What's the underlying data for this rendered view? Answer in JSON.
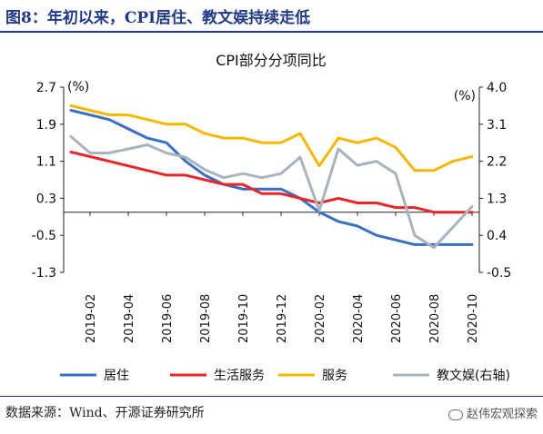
{
  "figure_title": "图8：年初以来，CPI居住、教文娱持续走低",
  "source": "数据来源：Wind、开源证券研究所",
  "watermark": "赵伟宏观探索",
  "chart_data": {
    "type": "line",
    "title": "CPI部分分项同比",
    "left_axis": {
      "unit": "(%)",
      "ticks": [
        2.7,
        1.9,
        1.1,
        0.3,
        -0.5,
        -1.3
      ],
      "ylim": [
        -1.3,
        2.7
      ]
    },
    "right_axis": {
      "unit": "(%)",
      "ticks": [
        4.0,
        3.1,
        2.2,
        1.3,
        0.4,
        -0.5
      ],
      "ylim": [
        -0.5,
        4.0
      ]
    },
    "x": [
      "2019-01",
      "2019-02",
      "2019-03",
      "2019-04",
      "2019-05",
      "2019-06",
      "2019-07",
      "2019-08",
      "2019-09",
      "2019-10",
      "2019-11",
      "2019-12",
      "2020-01",
      "2020-02",
      "2020-03",
      "2020-04",
      "2020-05",
      "2020-06",
      "2020-07",
      "2020-08",
      "2020-09",
      "2020-10"
    ],
    "x_tick_labels": [
      "2019-02",
      "2019-04",
      "2019-06",
      "2019-08",
      "2019-10",
      "2019-12",
      "2020-02",
      "2020-04",
      "2020-06",
      "2020-08",
      "2020-10"
    ],
    "series": [
      {
        "name": "居住",
        "axis": "left",
        "color": "#3a6fc4",
        "values": [
          2.2,
          2.1,
          2.0,
          1.8,
          1.6,
          1.5,
          1.1,
          0.8,
          0.6,
          0.5,
          0.5,
          0.5,
          0.3,
          0.0,
          -0.2,
          -0.3,
          -0.5,
          -0.6,
          -0.7,
          -0.7,
          -0.7,
          -0.7
        ]
      },
      {
        "name": "生活服务",
        "axis": "left",
        "color": "#e8262a",
        "values": [
          1.3,
          1.2,
          1.1,
          1.0,
          0.9,
          0.8,
          0.8,
          0.7,
          0.6,
          0.6,
          0.4,
          0.4,
          0.3,
          0.2,
          0.3,
          0.2,
          0.2,
          0.1,
          0.1,
          0.0,
          0.0,
          0.0
        ]
      },
      {
        "name": "服务",
        "axis": "left",
        "color": "#f5b800",
        "values": [
          2.3,
          2.2,
          2.1,
          2.1,
          2.0,
          1.9,
          1.9,
          1.7,
          1.6,
          1.6,
          1.5,
          1.5,
          1.7,
          1.0,
          1.6,
          1.5,
          1.6,
          1.4,
          0.9,
          0.9,
          1.1,
          1.2
        ]
      },
      {
        "name": "教文娱(右轴)",
        "axis": "right",
        "color": "#a7b4bd",
        "values": [
          2.8,
          2.4,
          2.4,
          2.5,
          2.6,
          2.4,
          2.3,
          2.0,
          1.8,
          1.9,
          1.8,
          1.9,
          2.3,
          1.0,
          2.5,
          2.1,
          2.2,
          1.9,
          0.4,
          0.1,
          0.6,
          1.1
        ]
      }
    ]
  }
}
